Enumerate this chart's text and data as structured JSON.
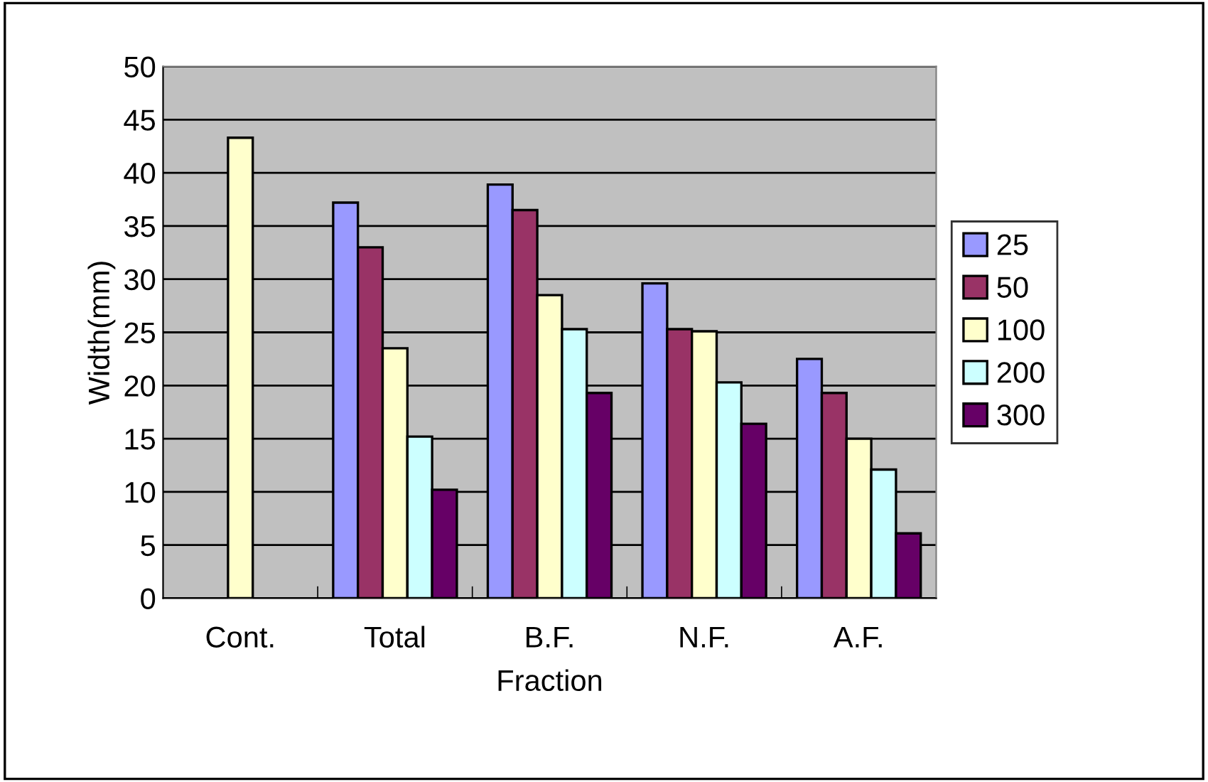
{
  "chart_data": {
    "type": "bar",
    "xlabel": "Fraction",
    "ylabel": "Width(mm)",
    "categories": [
      "Cont.",
      "Total",
      "B.F.",
      "N.F.",
      "A.F."
    ],
    "series": [
      {
        "name": "25",
        "color": "#9999ff",
        "values": [
          null,
          37.2,
          38.9,
          29.6,
          22.5
        ]
      },
      {
        "name": "50",
        "color": "#993366",
        "values": [
          null,
          33.0,
          36.5,
          25.3,
          19.3
        ]
      },
      {
        "name": "100",
        "color": "#ffffcc",
        "values": [
          43.3,
          23.5,
          28.5,
          25.1,
          15.0
        ]
      },
      {
        "name": "200",
        "color": "#ccffff",
        "values": [
          null,
          15.2,
          25.3,
          20.3,
          12.1
        ]
      },
      {
        "name": "300",
        "color": "#660066",
        "values": [
          null,
          10.2,
          19.3,
          16.4,
          6.1
        ]
      }
    ],
    "ylim": [
      0,
      50
    ],
    "yticks": [
      0,
      5,
      10,
      15,
      20,
      25,
      30,
      35,
      40,
      45,
      50
    ],
    "grid": "y",
    "legend": "right"
  }
}
